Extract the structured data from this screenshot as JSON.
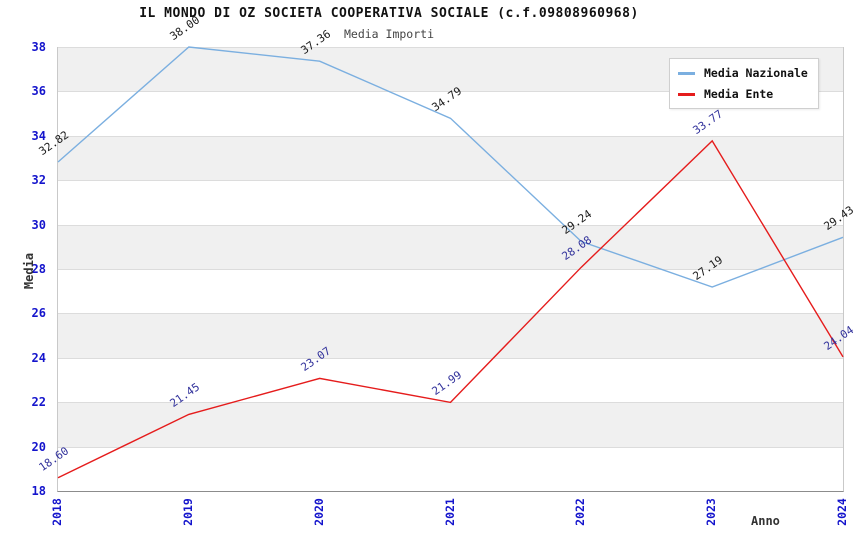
{
  "chart_data": {
    "type": "line",
    "title": "IL MONDO DI OZ SOCIETA COOPERATIVA SOCIALE (c.f.09808960968)",
    "subtitle": "Media Importi",
    "xlabel": "Anno",
    "ylabel": "Media",
    "categories": [
      "2018",
      "2019",
      "2020",
      "2021",
      "2022",
      "2023",
      "2024"
    ],
    "series": [
      {
        "name": "Media Nazionale",
        "color": "#7bafe0",
        "label_color": "#1a1a1a",
        "values": [
          32.82,
          38.0,
          37.36,
          34.79,
          29.24,
          27.19,
          29.43
        ]
      },
      {
        "name": "Media Ente",
        "color": "#e51c1c",
        "label_color": "#31319b",
        "values": [
          18.6,
          21.45,
          23.07,
          21.99,
          28.08,
          33.77,
          24.04
        ]
      }
    ],
    "ylim": [
      18,
      38
    ],
    "ytick_step": 2,
    "grid": true,
    "band_fill": true,
    "legend_position": "top-right",
    "tick_color": "#1414cc",
    "band_color": "#f0f0f0",
    "gridline_color": "#dcdcdc"
  }
}
